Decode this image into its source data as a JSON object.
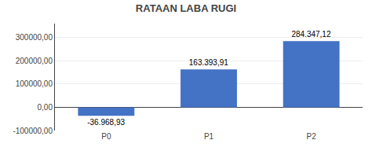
{
  "chart_data": {
    "type": "bar",
    "title": "RATAAN LABA RUGI",
    "categories": [
      "P0",
      "P1",
      "P2"
    ],
    "values": [
      -36968.93,
      163393.91,
      284347.12
    ],
    "value_labels": [
      "-36.968,93",
      "163.393,91",
      "284.347,12"
    ],
    "data_labels": true,
    "color": "#4472c4",
    "ylim": [
      -100000,
      360000
    ],
    "yticks": [
      {
        "value": -100000,
        "label": "-100000,00"
      },
      {
        "value": 0,
        "label": "0,00"
      },
      {
        "value": 100000,
        "label": "100000,00"
      },
      {
        "value": 200000,
        "label": "200000,00"
      },
      {
        "value": 300000,
        "label": "300000,00"
      }
    ],
    "grid": true
  }
}
